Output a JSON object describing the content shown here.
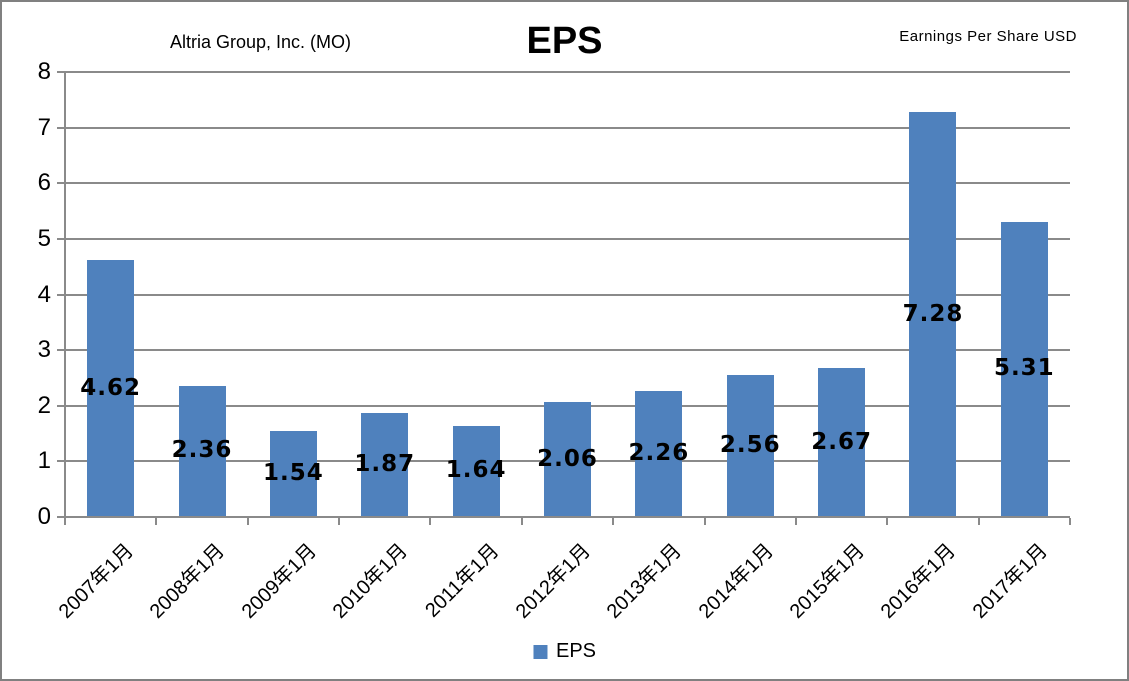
{
  "header": {
    "company": "Altria Group, Inc. (MO)",
    "title": "EPS",
    "unit": "Earnings Per Share USD"
  },
  "legend": {
    "label": "EPS"
  },
  "chart_data": {
    "type": "bar",
    "title": "EPS",
    "subtitle_left": "Altria Group, Inc. (MO)",
    "subtitle_right": "Earnings Per Share USD",
    "categories": [
      "2007年1月",
      "2008年1月",
      "2009年1月",
      "2010年1月",
      "2011年1月",
      "2012年1月",
      "2013年1月",
      "2014年1月",
      "2015年1月",
      "2016年1月",
      "2017年1月"
    ],
    "values": [
      4.62,
      2.36,
      1.54,
      1.87,
      1.64,
      2.06,
      2.26,
      2.56,
      2.67,
      7.28,
      5.31
    ],
    "series_name": "EPS",
    "xlabel": "",
    "ylabel": "",
    "ylim": [
      0,
      8
    ],
    "yticks": [
      0,
      1,
      2,
      3,
      4,
      5,
      6,
      7,
      8
    ],
    "grid": true,
    "data_labels": true,
    "legend_position": "bottom",
    "bar_color": "#4F81BD",
    "gridline_color": "#8A8A8A",
    "axis_color": "#8A8A8A",
    "border_color": "#808080",
    "text_color": "#000000"
  }
}
